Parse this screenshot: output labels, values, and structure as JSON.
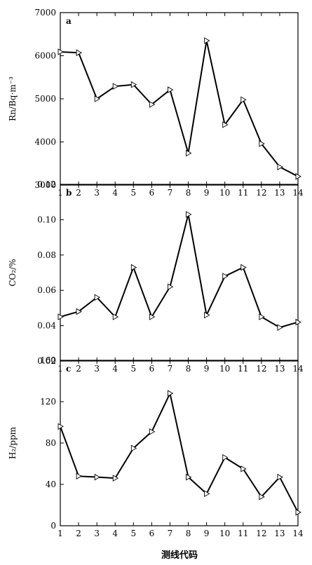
{
  "chart_data": [
    {
      "type": "line",
      "panel_label": "a",
      "x": [
        1,
        2,
        3,
        4,
        5,
        6,
        7,
        8,
        9,
        10,
        11,
        12,
        13,
        14
      ],
      "series": [
        {
          "values": [
            6090,
            6070,
            5000,
            5290,
            5330,
            4870,
            5210,
            3740,
            6350,
            4400,
            4980,
            3960,
            3420,
            3200
          ]
        }
      ],
      "ylabel": "Rn/Bq·m⁻³",
      "ylim": [
        3000,
        7000
      ],
      "yticks": [
        3000,
        4000,
        5000,
        6000,
        7000
      ],
      "xlim": [
        1,
        14
      ]
    },
    {
      "type": "line",
      "panel_label": "b",
      "x": [
        1,
        2,
        3,
        4,
        5,
        6,
        7,
        8,
        9,
        10,
        11,
        12,
        13,
        14
      ],
      "series": [
        {
          "values": [
            0.045,
            0.048,
            0.056,
            0.045,
            0.073,
            0.045,
            0.062,
            0.103,
            0.046,
            0.068,
            0.073,
            0.045,
            0.039,
            0.042
          ]
        }
      ],
      "ylabel": "CO₂/%",
      "ylim": [
        0.02,
        0.12
      ],
      "yticks": [
        "0.02",
        "0.04",
        "0.06",
        "0.08",
        "0.10",
        "0.12"
      ],
      "xlim": [
        1,
        14
      ]
    },
    {
      "type": "line",
      "panel_label": "c",
      "x": [
        1,
        2,
        3,
        4,
        5,
        6,
        7,
        8,
        9,
        10,
        11,
        12,
        13,
        14
      ],
      "series": [
        {
          "values": [
            96,
            48,
            47,
            46,
            75,
            91,
            128,
            47,
            31,
            66,
            55,
            28,
            47,
            13
          ]
        }
      ],
      "ylabel": "H₂/ppm",
      "ylim": [
        0,
        160
      ],
      "yticks": [
        0,
        40,
        80,
        120,
        160
      ],
      "xlim": [
        1,
        14
      ]
    }
  ],
  "xticks": [
    "1",
    "2",
    "3",
    "4",
    "5",
    "6",
    "7",
    "8",
    "9",
    "10",
    "11",
    "12",
    "13",
    "14"
  ],
  "xlabel": "测线代码"
}
